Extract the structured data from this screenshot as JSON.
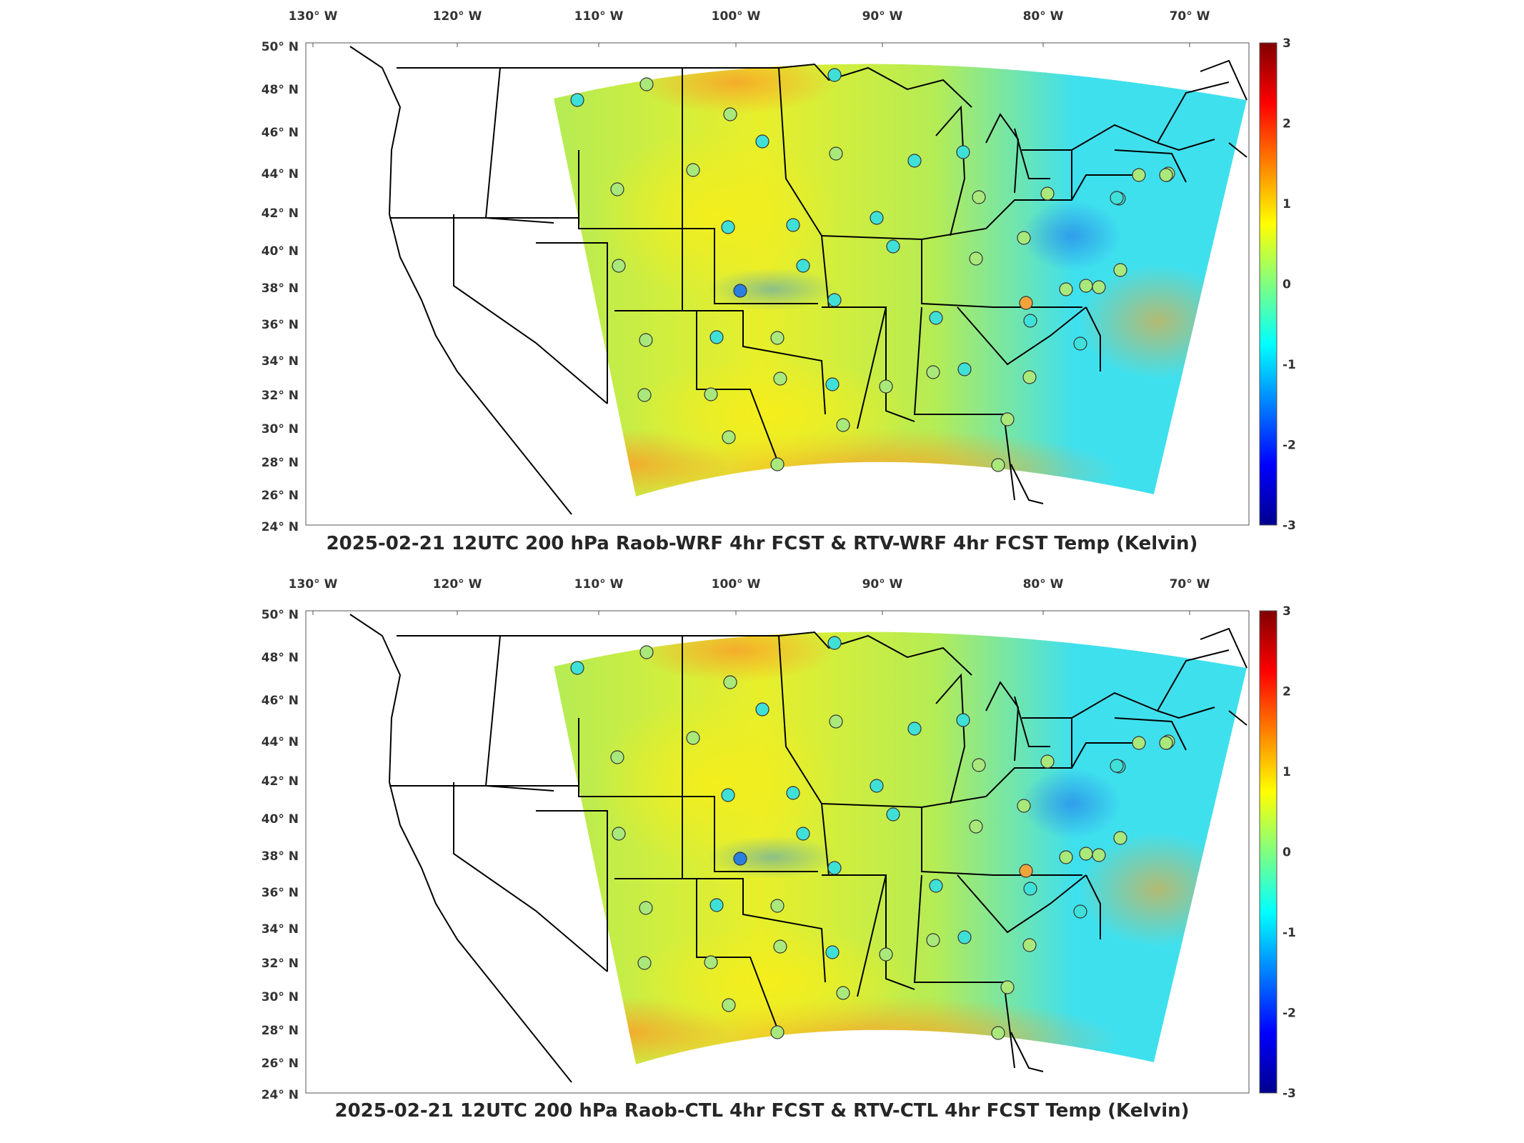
{
  "figure": {
    "panels": [
      {
        "id": "top",
        "title": "2025-02-21 12UTC 200 hPa Raob-WRF 4hr FCST & RTV-WRF 4hr FCST Temp (Kelvin)"
      },
      {
        "id": "bottom",
        "title": "2025-02-21 12UTC 200 hPa Raob-CTL 4hr FCST & RTV-CTL 4hr FCST Temp (Kelvin)"
      }
    ],
    "lon_ticks": [
      "130° W",
      "120° W",
      "110° W",
      "100° W",
      "90° W",
      "80° W",
      "70° W"
    ],
    "lat_ticks": [
      "50° N",
      "48° N",
      "46° N",
      "44° N",
      "42° N",
      "40° N",
      "38° N",
      "36° N",
      "34° N",
      "32° N",
      "30° N",
      "28° N",
      "26° N",
      "24° N"
    ],
    "colorbar": {
      "ticks": [
        "3",
        "2",
        "1",
        "0",
        "-1",
        "-2",
        "-3"
      ],
      "range": [
        -3,
        3
      ],
      "colormap": [
        "#00008f",
        "#0000ff",
        "#0080ff",
        "#00ffff",
        "#80ff80",
        "#ffff00",
        "#ff8000",
        "#ff0000",
        "#800000"
      ]
    },
    "field_colors": {
      "warm": "#f7a52a",
      "neutral_warm": "#e8ef2a",
      "neutral": "#b5ec55",
      "cool": "#3fe0ee",
      "cold": "#2a8de8"
    }
  }
}
